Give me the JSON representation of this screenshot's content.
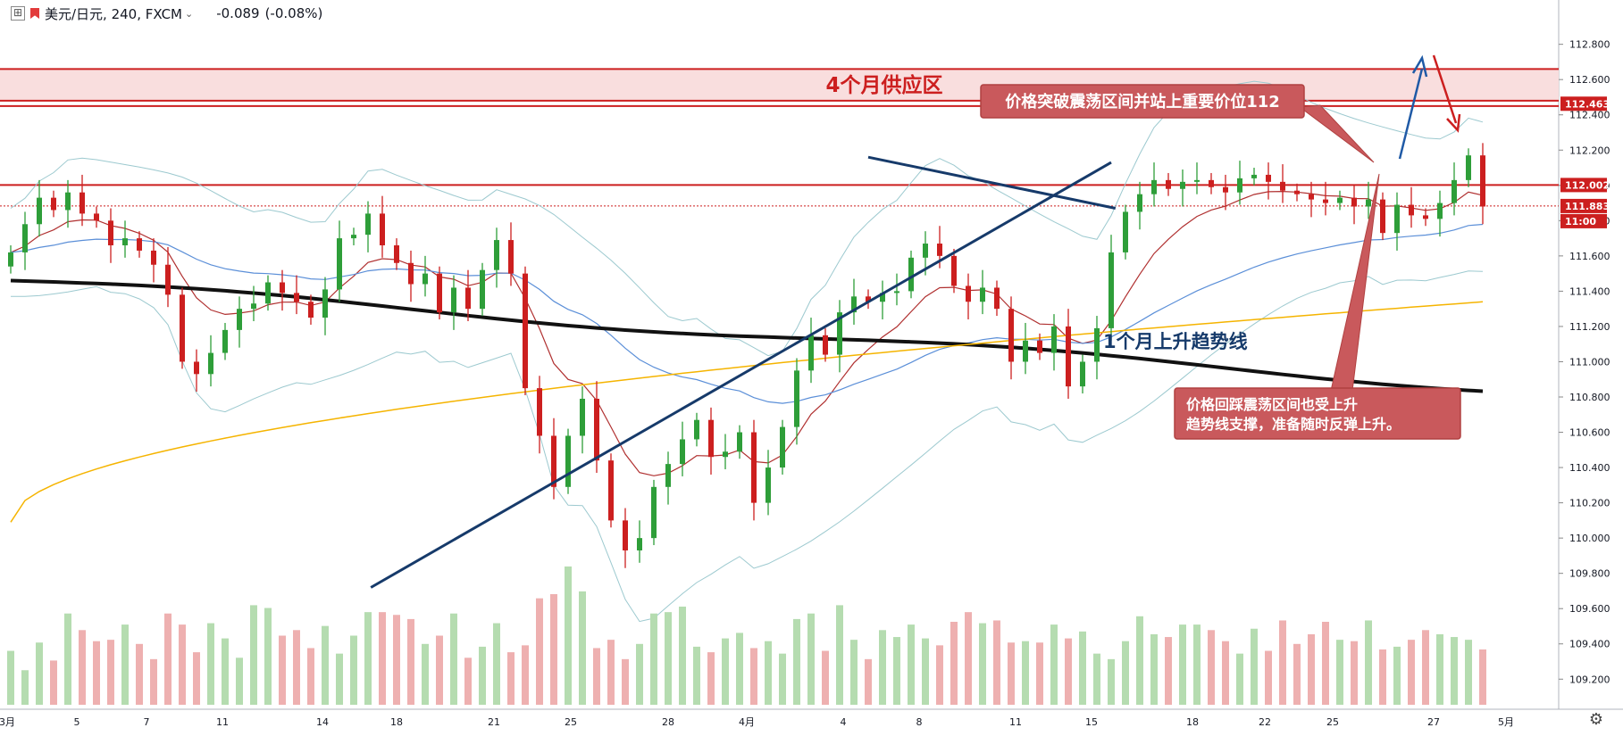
{
  "header": {
    "symbol": "美元/日元, 240, FXCM",
    "change": "-0.089",
    "change_pct": "(-0.08%)"
  },
  "chart_data": {
    "type": "candlestick",
    "title": "",
    "y_ticks": [
      112.8,
      112.6,
      112.4,
      112.2,
      112.0,
      111.8,
      111.6,
      111.4,
      111.2,
      111.0,
      110.8,
      110.6,
      110.4,
      110.2,
      110.0,
      109.8,
      109.6,
      109.4,
      109.2
    ],
    "y_tick_labels": [
      "112.800",
      "112.600",
      "112.400",
      "112.200",
      "112.000",
      "111.800",
      "111.600",
      "111.400",
      "111.200",
      "111.000",
      "110.800",
      "110.600",
      "110.400",
      "110.200",
      "110.000",
      "109.800",
      "109.600",
      "109.400",
      "109.200"
    ],
    "ylim": [
      109.08,
      112.95
    ],
    "x_tick_labels": [
      "3月",
      "5",
      "7",
      "11",
      "14",
      "18",
      "21",
      "25",
      "28",
      "4月",
      "4",
      "8",
      "11",
      "15",
      "18",
      "22",
      "25",
      "27",
      "5月"
    ],
    "price_labels": [
      {
        "text": "112.463",
        "value": 112.463,
        "color": "#cc1f1f"
      },
      {
        "text": "112.002",
        "value": 112.002,
        "color": "#cc1f1f"
      },
      {
        "text": "111.883",
        "value": 111.883,
        "color": "#cc1f1f"
      },
      {
        "text": "11:00",
        "value": 111.8,
        "color": "#cc1f1f"
      }
    ],
    "supply_zone": {
      "label": "4个月供应区",
      "top": 112.66,
      "bottom": 112.48,
      "color": "#cc1f1f"
    },
    "resistance_lines": [
      112.66,
      112.48,
      112.45,
      112.002
    ],
    "current_price": 111.883,
    "annotations": [
      {
        "text": "价格突破震荡区间并站上重要价位112",
        "kind": "callout"
      },
      {
        "text": "1个月上升趋势线",
        "kind": "label",
        "color": "#163a6a"
      },
      {
        "text": "价格回踩震荡区间也受上升趋势线支撑，准备随时反弹上升。",
        "kind": "callout"
      }
    ],
    "trend_channel": {
      "support_from": [
        25.2,
        109.72
      ],
      "support_to": [
        77.0,
        112.13
      ],
      "resistance_from": [
        60.0,
        112.16
      ],
      "resistance_to": [
        77.3,
        111.87
      ]
    },
    "closes": [
      111.62,
      111.78,
      111.93,
      111.86,
      111.96,
      111.84,
      111.8,
      111.66,
      111.7,
      111.63,
      111.55,
      111.38,
      111.0,
      110.93,
      111.05,
      111.18,
      111.3,
      111.33,
      111.45,
      111.39,
      111.34,
      111.25,
      111.41,
      111.7,
      111.72,
      111.84,
      111.66,
      111.56,
      111.44,
      111.5,
      111.28,
      111.42,
      111.3,
      111.52,
      111.69,
      111.5,
      110.85,
      110.58,
      110.29,
      110.58,
      110.79,
      110.44,
      110.1,
      109.93,
      110.0,
      110.29,
      110.42,
      110.56,
      110.67,
      110.46,
      110.49,
      110.6,
      110.2,
      110.4,
      110.63,
      110.95,
      111.15,
      111.04,
      111.28,
      111.37,
      111.34,
      111.39,
      111.4,
      111.59,
      111.67,
      111.6,
      111.43,
      111.34,
      111.42,
      111.3,
      111.0,
      111.12,
      111.05,
      111.2,
      110.86,
      111.0,
      111.19,
      111.62,
      111.85,
      111.95,
      112.03,
      111.98,
      112.02,
      112.03,
      111.99,
      111.96,
      112.04,
      112.06,
      112.02,
      111.97,
      111.95,
      111.92,
      111.9,
      111.93,
      111.88,
      111.92,
      111.73,
      111.89,
      111.83,
      111.81,
      111.9,
      112.03,
      112.17,
      111.88
    ],
    "sma_black": {
      "start": 111.46,
      "end": 110.86
    },
    "sma_orange": {
      "start": 110.09,
      "end": 111.34
    },
    "volumes": [
      39,
      25,
      45,
      32,
      66,
      54,
      46,
      47,
      58,
      44,
      33,
      66,
      58,
      38,
      59,
      48,
      34,
      72,
      70,
      50,
      54,
      41,
      57,
      37,
      50,
      67,
      67,
      65,
      62,
      44,
      50,
      66,
      34,
      42,
      59,
      38,
      43,
      77,
      80,
      100,
      82,
      41,
      47,
      33,
      44,
      66,
      67,
      71,
      42,
      38,
      48,
      52,
      41,
      46,
      37,
      62,
      66,
      39,
      72,
      47,
      33,
      54,
      49,
      58,
      48,
      43,
      60,
      67,
      59,
      61,
      45,
      46,
      45,
      58,
      48,
      53,
      37,
      33,
      46,
      64,
      51,
      49,
      58,
      58,
      54,
      46,
      37,
      55,
      39,
      61,
      44,
      51,
      60,
      47,
      46,
      61,
      40,
      42,
      47,
      54,
      51,
      49,
      47,
      40
    ],
    "colors": {
      "up": "#2e9e39",
      "down": "#cc1f1f",
      "vol_up": "#b5dcb0",
      "vol_down": "#eeb0b0",
      "sma_black": "#111111",
      "sma_orange": "#f5b400",
      "ma_red": "#b03030",
      "ma_blue": "#5b8fd8",
      "bollinger": "#9cc9cf",
      "trend": "#163a6a"
    }
  }
}
